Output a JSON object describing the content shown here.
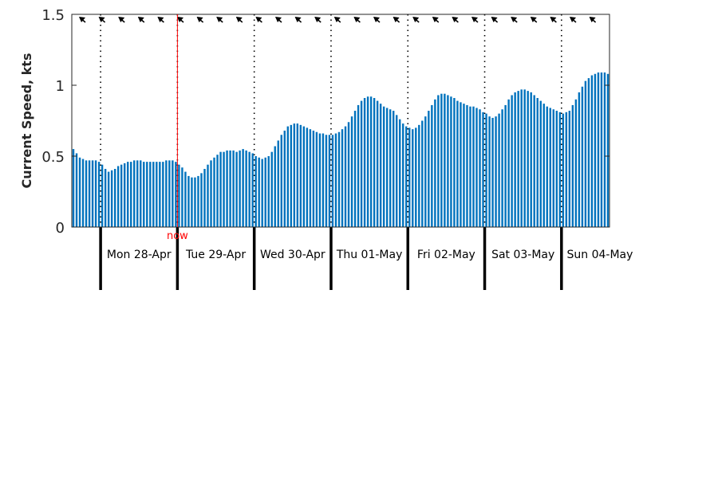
{
  "chart_data": {
    "type": "bar",
    "ylabel": "Current Speed, kts",
    "ylim": [
      0,
      1.5
    ],
    "yticks": [
      "0",
      "0.5",
      "1",
      "1.5"
    ],
    "now_label": "now",
    "now_index": 33,
    "bar_color": "#0072bd",
    "now_color": "#ff0000",
    "days": [
      {
        "label": "Mon 28-Apr",
        "start_index": 9
      },
      {
        "label": "Tue 29-Apr",
        "start_index": 33
      },
      {
        "label": "Wed 30-Apr",
        "start_index": 57
      },
      {
        "label": "Thu 01-May",
        "start_index": 81
      },
      {
        "label": "Fri 02-May",
        "start_index": 105
      },
      {
        "label": "Sat 03-May",
        "start_index": 129
      },
      {
        "label": "Sun 04-May",
        "start_index": 153
      }
    ],
    "direction_arrows": "NE-pointing arrows along top of plot",
    "values": [
      0.55,
      0.52,
      0.49,
      0.48,
      0.47,
      0.47,
      0.47,
      0.47,
      0.46,
      0.44,
      0.41,
      0.39,
      0.4,
      0.41,
      0.43,
      0.44,
      0.45,
      0.46,
      0.46,
      0.47,
      0.47,
      0.47,
      0.46,
      0.46,
      0.46,
      0.46,
      0.46,
      0.46,
      0.46,
      0.47,
      0.47,
      0.47,
      0.46,
      0.44,
      0.42,
      0.39,
      0.36,
      0.35,
      0.35,
      0.36,
      0.38,
      0.41,
      0.44,
      0.47,
      0.49,
      0.51,
      0.53,
      0.53,
      0.54,
      0.54,
      0.54,
      0.53,
      0.54,
      0.55,
      0.54,
      0.53,
      0.52,
      0.5,
      0.49,
      0.48,
      0.49,
      0.5,
      0.53,
      0.57,
      0.61,
      0.65,
      0.68,
      0.71,
      0.72,
      0.73,
      0.73,
      0.72,
      0.71,
      0.7,
      0.69,
      0.68,
      0.67,
      0.66,
      0.66,
      0.65,
      0.65,
      0.65,
      0.66,
      0.67,
      0.69,
      0.71,
      0.74,
      0.78,
      0.82,
      0.86,
      0.89,
      0.91,
      0.92,
      0.92,
      0.91,
      0.89,
      0.87,
      0.85,
      0.84,
      0.83,
      0.82,
      0.79,
      0.76,
      0.73,
      0.71,
      0.7,
      0.69,
      0.7,
      0.72,
      0.75,
      0.78,
      0.82,
      0.86,
      0.9,
      0.93,
      0.94,
      0.94,
      0.93,
      0.92,
      0.91,
      0.89,
      0.88,
      0.87,
      0.86,
      0.85,
      0.85,
      0.84,
      0.83,
      0.81,
      0.8,
      0.78,
      0.77,
      0.78,
      0.8,
      0.83,
      0.86,
      0.9,
      0.93,
      0.95,
      0.96,
      0.97,
      0.97,
      0.96,
      0.95,
      0.93,
      0.91,
      0.89,
      0.87,
      0.85,
      0.84,
      0.83,
      0.82,
      0.81,
      0.8,
      0.81,
      0.82,
      0.86,
      0.9,
      0.95,
      0.99,
      1.03,
      1.05,
      1.07,
      1.08,
      1.09,
      1.09,
      1.09,
      1.08
    ]
  }
}
